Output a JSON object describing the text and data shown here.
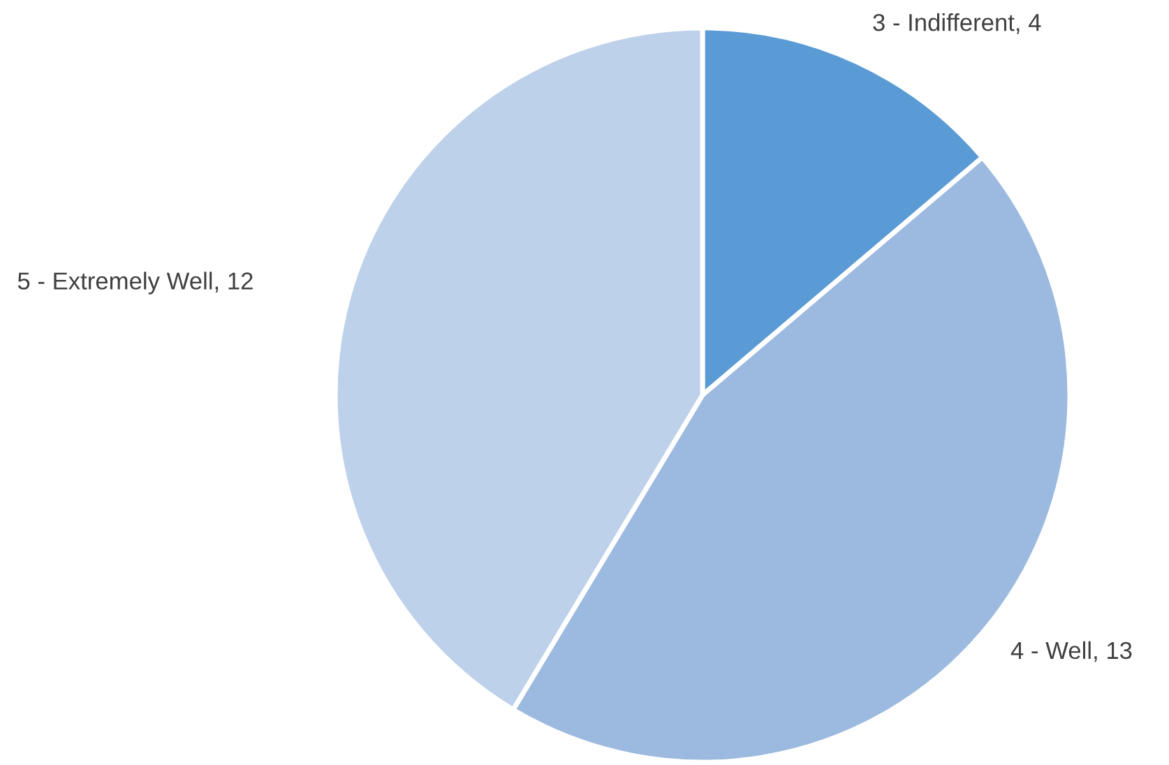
{
  "chart_data": {
    "type": "pie",
    "categories": [
      "3 - Indifferent",
      "4 - Well",
      "5 - Extremely Well"
    ],
    "values": [
      4,
      13,
      12
    ],
    "colors": [
      "#5b9bd5",
      "#9cb9df",
      "#bdd1ea"
    ],
    "value_labels": [
      ", 4",
      ", 13",
      ", 12"
    ],
    "legend": false
  }
}
